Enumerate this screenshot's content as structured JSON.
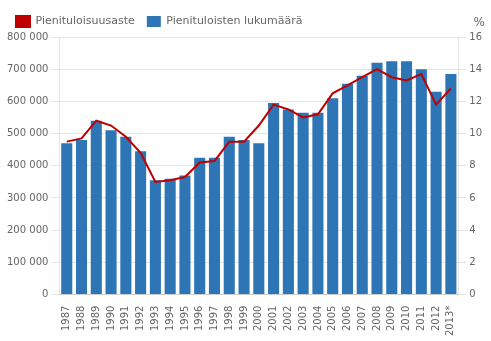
{
  "chart_data": {
    "type": "bar",
    "categories": [
      "1987",
      "1988",
      "1989",
      "1990",
      "1991",
      "1992",
      "1993",
      "1994",
      "1995",
      "1996",
      "1997",
      "1998",
      "1999",
      "2000",
      "2001",
      "2002",
      "2003",
      "2004",
      "2005",
      "2006",
      "2007",
      "2008",
      "2009",
      "2010",
      "2011",
      "2012",
      "2013*"
    ],
    "series": [
      {
        "name": "Pienituloisten lukumäärä",
        "type": "bar",
        "color": "#2E75B6",
        "values": [
          470000,
          480000,
          540000,
          510000,
          490000,
          445000,
          355000,
          360000,
          370000,
          425000,
          425000,
          490000,
          480000,
          470000,
          595000,
          575000,
          565000,
          565000,
          610000,
          655000,
          680000,
          720000,
          725000,
          725000,
          700000,
          630000,
          685000
        ]
      },
      {
        "name": "Pienituloisuusaste",
        "type": "line",
        "color": "#C00000",
        "axis": "y2",
        "values": [
          9.5,
          9.7,
          10.8,
          10.5,
          9.8,
          8.8,
          7.0,
          7.1,
          7.3,
          8.2,
          8.3,
          9.5,
          9.5,
          10.5,
          11.8,
          11.5,
          11.0,
          11.2,
          12.5,
          13.0,
          13.5,
          14.0,
          13.5,
          13.3,
          13.7,
          11.8,
          12.8
        ]
      }
    ],
    "ylim": [
      0,
      800000
    ],
    "yticks": [
      0,
      {
        "value": 100000,
        "label": "100 000"
      },
      {
        "value": 200000,
        "label": "200 000"
      },
      {
        "value": 300000,
        "label": "300 000"
      },
      {
        "value": 400000,
        "label": "400 000"
      },
      {
        "value": 500000,
        "label": "500 000"
      },
      {
        "value": 600000,
        "label": "600 000"
      },
      {
        "value": 700000,
        "label": "700 000"
      },
      {
        "value": 800000,
        "label": "800 000"
      }
    ],
    "y2lim": [
      0,
      16
    ],
    "y2ticks": [
      0,
      2,
      4,
      6,
      8,
      10,
      12,
      14,
      16
    ],
    "y2label": "%",
    "grid": true,
    "legend": "upper left"
  }
}
